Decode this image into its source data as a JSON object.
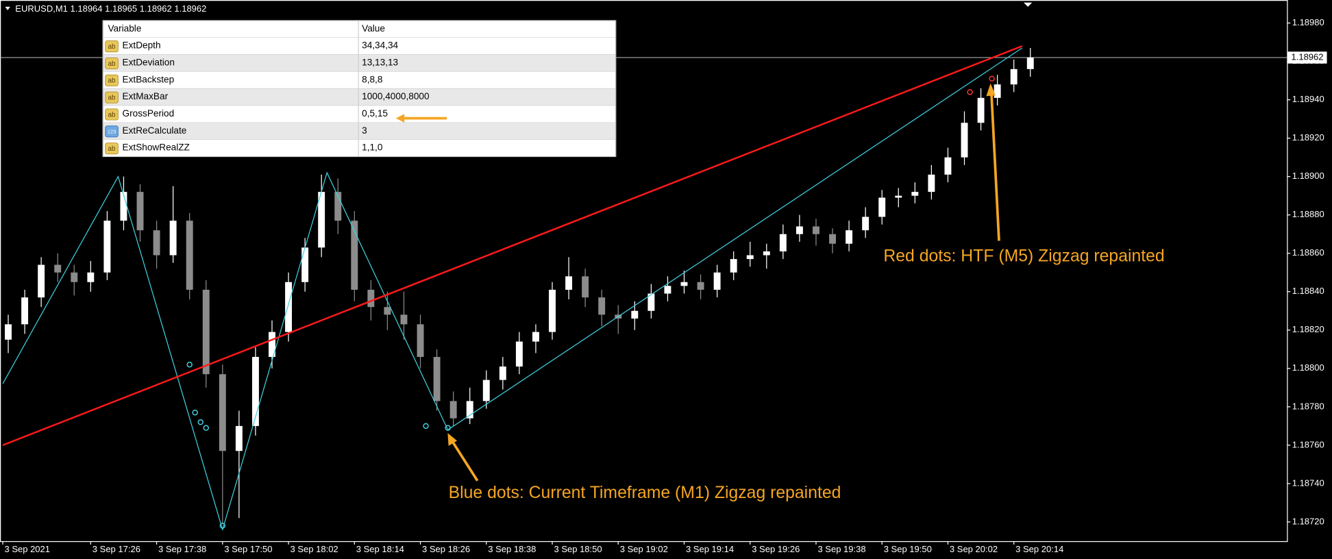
{
  "header": "EURUSD,M1  1.18964 1.18965 1.18962 1.18962",
  "table": {
    "columns": [
      "Variable",
      "Value"
    ],
    "icons": [
      "ab",
      "ab",
      "ab",
      "ab",
      "ab",
      "123",
      "ab"
    ],
    "rows": [
      [
        "ExtDepth",
        "34,34,34"
      ],
      [
        "ExtDeviation",
        "13,13,13"
      ],
      [
        "ExtBackstep",
        "8,8,8"
      ],
      [
        "ExtMaxBar",
        "1000,4000,8000"
      ],
      [
        "GrossPeriod",
        "0,5,15"
      ],
      [
        "ExtReCalculate",
        "3"
      ],
      [
        "ExtShowRealZZ",
        "1,1,0"
      ]
    ]
  },
  "annotations": [
    "Red dots: HTF (M5) Zigzag repainted",
    "Blue dots: Current Timeframe (M1) Zigzag repainted"
  ],
  "chart_data": {
    "type": "candlestick",
    "up_color": "#ffffff",
    "down_color": "#8c8c8c",
    "current_price": 1.18962,
    "xlim": [
      -0.5,
      233.7
    ],
    "ylim": [
      1.1871,
      1.18992
    ],
    "xticks": [
      {
        "value": 0,
        "label": "3 Sep 2021"
      },
      {
        "value": 16,
        "label": "3 Sep 17:26"
      },
      {
        "value": 28,
        "label": "3 Sep 17:38"
      },
      {
        "value": 40,
        "label": "3 Sep 17:50"
      },
      {
        "value": 52,
        "label": "3 Sep 18:02"
      },
      {
        "value": 64,
        "label": "3 Sep 18:14"
      },
      {
        "value": 76,
        "label": "3 Sep 18:26"
      },
      {
        "value": 88,
        "label": "3 Sep 18:38"
      },
      {
        "value": 100,
        "label": "3 Sep 18:50"
      },
      {
        "value": 112,
        "label": "3 Sep 19:02"
      },
      {
        "value": 124,
        "label": "3 Sep 19:14"
      },
      {
        "value": 136,
        "label": "3 Sep 19:26"
      },
      {
        "value": 148,
        "label": "3 Sep 19:38"
      },
      {
        "value": 160,
        "label": "3 Sep 19:50"
      },
      {
        "value": 172,
        "label": "3 Sep 20:02"
      },
      {
        "value": 184,
        "label": "3 Sep 20:14"
      }
    ],
    "yticks": [
      {
        "value": 1.1872,
        "label": "1.18720"
      },
      {
        "value": 1.1874,
        "label": "1.18740"
      },
      {
        "value": 1.1876,
        "label": "1.18760"
      },
      {
        "value": 1.1878,
        "label": "1.18780"
      },
      {
        "value": 1.188,
        "label": "1.18800"
      },
      {
        "value": 1.1882,
        "label": "1.18820"
      },
      {
        "value": 1.1884,
        "label": "1.18840"
      },
      {
        "value": 1.1886,
        "label": "1.18860"
      },
      {
        "value": 1.1888,
        "label": "1.18880"
      },
      {
        "value": 1.189,
        "label": "1.18900"
      },
      {
        "value": 1.1892,
        "label": "1.18920"
      },
      {
        "value": 1.1894,
        "label": "1.18940"
      },
      {
        "value": 1.1896,
        "label": "1.18960"
      },
      {
        "value": 1.1898,
        "label": "1.18980"
      }
    ],
    "candle_x": [
      1,
      4,
      7,
      10,
      13,
      16,
      19,
      22,
      25,
      28,
      31,
      34,
      37,
      40,
      43,
      46,
      49,
      52,
      55,
      58,
      61,
      64,
      67,
      70,
      73,
      76,
      79,
      82,
      85,
      88,
      91,
      94,
      97,
      100,
      103,
      106,
      109,
      112,
      115,
      118,
      121,
      124,
      127,
      130,
      133,
      136,
      139,
      142,
      145,
      148,
      151,
      154,
      157,
      160,
      163,
      166,
      169,
      172,
      175,
      178,
      181,
      184,
      187
    ],
    "candles": [
      [
        1.18815,
        1.18828,
        1.18808,
        1.18823
      ],
      [
        1.18823,
        1.18841,
        1.18818,
        1.18837
      ],
      [
        1.18837,
        1.18858,
        1.18832,
        1.18854
      ],
      [
        1.18854,
        1.1886,
        1.18845,
        1.1885
      ],
      [
        1.1885,
        1.18854,
        1.18838,
        1.18845
      ],
      [
        1.18845,
        1.18856,
        1.1884,
        1.1885
      ],
      [
        1.1885,
        1.18882,
        1.18846,
        1.18877
      ],
      [
        1.18877,
        1.189,
        1.18872,
        1.18892
      ],
      [
        1.18892,
        1.18896,
        1.18866,
        1.18872
      ],
      [
        1.18872,
        1.18877,
        1.18852,
        1.18859
      ],
      [
        1.18859,
        1.18895,
        1.18855,
        1.18877
      ],
      [
        1.18877,
        1.18881,
        1.18836,
        1.18841
      ],
      [
        1.18841,
        1.18846,
        1.1879,
        1.18797
      ],
      [
        1.18797,
        1.18802,
        1.18719,
        1.18757
      ],
      [
        1.18757,
        1.18778,
        1.18722,
        1.1877
      ],
      [
        1.1877,
        1.18811,
        1.18765,
        1.18806
      ],
      [
        1.18806,
        1.18825,
        1.188,
        1.18819
      ],
      [
        1.18819,
        1.1885,
        1.18814,
        1.18845
      ],
      [
        1.18845,
        1.18868,
        1.1884,
        1.18863
      ],
      [
        1.18863,
        1.18901,
        1.18858,
        1.18892
      ],
      [
        1.18892,
        1.18899,
        1.1887,
        1.18877
      ],
      [
        1.18877,
        1.18882,
        1.18835,
        1.18841
      ],
      [
        1.18841,
        1.18846,
        1.18825,
        1.18832
      ],
      [
        1.18832,
        1.1884,
        1.1882,
        1.18828
      ],
      [
        1.18828,
        1.1884,
        1.18815,
        1.18823
      ],
      [
        1.18823,
        1.18828,
        1.188,
        1.18806
      ],
      [
        1.18806,
        1.1881,
        1.18778,
        1.18783
      ],
      [
        1.18783,
        1.18788,
        1.1877,
        1.18774
      ],
      [
        1.18774,
        1.1879,
        1.18771,
        1.18783
      ],
      [
        1.18783,
        1.18799,
        1.18779,
        1.18794
      ],
      [
        1.18794,
        1.18806,
        1.18789,
        1.18801
      ],
      [
        1.18801,
        1.18819,
        1.18797,
        1.18814
      ],
      [
        1.18814,
        1.18823,
        1.18808,
        1.18819
      ],
      [
        1.18819,
        1.18845,
        1.18815,
        1.18841
      ],
      [
        1.18841,
        1.18858,
        1.18836,
        1.18848
      ],
      [
        1.18848,
        1.18852,
        1.18832,
        1.18837
      ],
      [
        1.18837,
        1.18841,
        1.18822,
        1.18828
      ],
      [
        1.18828,
        1.18833,
        1.18818,
        1.18826
      ],
      [
        1.18826,
        1.18835,
        1.1882,
        1.1883
      ],
      [
        1.1883,
        1.18844,
        1.18826,
        1.18839
      ],
      [
        1.18839,
        1.18848,
        1.18835,
        1.18843
      ],
      [
        1.18843,
        1.18851,
        1.18839,
        1.18845
      ],
      [
        1.18845,
        1.18849,
        1.18836,
        1.18841
      ],
      [
        1.18841,
        1.18854,
        1.18837,
        1.1885
      ],
      [
        1.1885,
        1.18861,
        1.18846,
        1.18857
      ],
      [
        1.18857,
        1.18866,
        1.18853,
        1.18859
      ],
      [
        1.18859,
        1.18865,
        1.18852,
        1.18861
      ],
      [
        1.18861,
        1.18875,
        1.18857,
        1.1887
      ],
      [
        1.1887,
        1.1888,
        1.18866,
        1.18874
      ],
      [
        1.18874,
        1.18878,
        1.18864,
        1.1887
      ],
      [
        1.1887,
        1.18873,
        1.1886,
        1.18865
      ],
      [
        1.18865,
        1.18877,
        1.18861,
        1.18872
      ],
      [
        1.18872,
        1.18884,
        1.18868,
        1.18879
      ],
      [
        1.18879,
        1.18893,
        1.18875,
        1.18889
      ],
      [
        1.18889,
        1.18894,
        1.18884,
        1.1889
      ],
      [
        1.1889,
        1.18897,
        1.18886,
        1.18892
      ],
      [
        1.18892,
        1.18906,
        1.18888,
        1.18901
      ],
      [
        1.18901,
        1.18915,
        1.18897,
        1.1891
      ],
      [
        1.1891,
        1.18934,
        1.18906,
        1.18928
      ],
      [
        1.18928,
        1.18946,
        1.18924,
        1.18941
      ],
      [
        1.18941,
        1.18953,
        1.18937,
        1.18948
      ],
      [
        1.18948,
        1.18961,
        1.18944,
        1.18956
      ],
      [
        1.18956,
        1.18967,
        1.18952,
        1.18962
      ]
    ],
    "lines": [
      {
        "color": "#3fd0e0",
        "x": [
          0,
          21,
          40,
          59,
          81,
          185.5
        ],
        "values": [
          1.18792,
          1.189,
          1.18716,
          1.18902,
          1.18768,
          1.18967
        ]
      },
      {
        "color": "#ff1a1a",
        "x": [
          0,
          185.5
        ],
        "values": [
          1.1876,
          1.18968
        ]
      }
    ],
    "dots": [
      {
        "color": "#3fd0e0",
        "x": [
          34,
          35,
          36,
          37,
          40,
          77,
          81
        ],
        "values": [
          1.18802,
          1.18777,
          1.18772,
          1.18769,
          1.18718,
          1.1877,
          1.18769
        ]
      },
      {
        "color": "#ff3030",
        "x": [
          176,
          180
        ],
        "values": [
          1.18944,
          1.18951
        ]
      }
    ]
  }
}
